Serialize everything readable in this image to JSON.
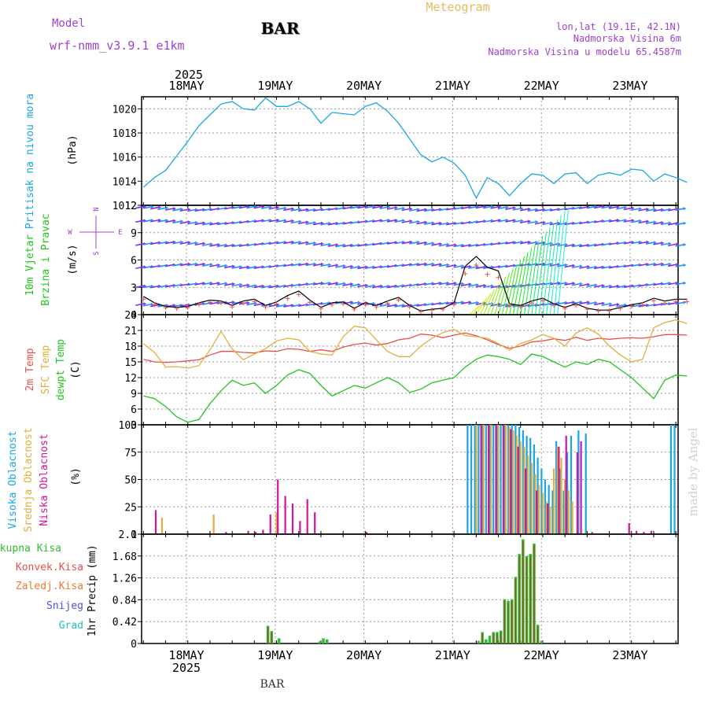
{
  "header": {
    "model_label": "Model",
    "model_name": "wrf-nmm_v3.9.1  e1km",
    "station": "BAR",
    "app_title": "Meteogram",
    "coords": "lon,lat (19.1E, 42.1N)",
    "elevation": "Nadmorska Visina 6m",
    "model_elevation": "Nadmorska Visina u modelu 65.4587m",
    "watermark": "made by Angel",
    "footer_station": "BAR"
  },
  "colors": {
    "pressure": "#1aa6e6",
    "temp2m": "#e8504a",
    "sfc_temp": "#e3ae3a",
    "dewpt": "#22c41e",
    "high_cloud": "#1aa6e6",
    "mid_cloud": "#e3ae3a",
    "low_cloud": "#d0169a",
    "total_precip": "#33bb33",
    "conv_precip": "#e8504a",
    "frozen_precip": "#f07a30",
    "snow": "#5050e0",
    "hail": "#22c0c0",
    "wind_purple": "#8a2be2",
    "wind_blue": "#1e90ff",
    "axis_text": "#000000",
    "meta_text": "#a040d0",
    "title_orange": "#e6b860"
  },
  "chart_data": [
    {
      "id": "pressure",
      "type": "line",
      "ylabel_title": "Pritisak na nivou mora",
      "ylabel_unit": "(hPa)",
      "ylim": [
        1012,
        1021
      ],
      "yticks": [
        1012,
        1014,
        1016,
        1018,
        1020
      ],
      "x_top_labels": [
        "18MAY",
        "19MAY",
        "20MAY",
        "21MAY",
        "22MAY",
        "23MAY"
      ],
      "x_top_year": "2025",
      "grid": true,
      "series": [
        {
          "key": "pressure",
          "x": [
            0,
            3,
            6,
            9,
            12,
            15,
            18,
            21,
            24,
            27,
            30,
            33,
            36,
            39,
            42,
            45,
            48,
            51,
            54,
            57,
            60,
            63,
            66,
            69,
            72,
            75,
            78,
            81,
            84,
            87,
            90,
            93,
            96,
            99,
            102,
            105,
            108,
            111,
            114,
            117,
            120,
            123,
            126,
            129,
            132,
            135,
            138,
            141,
            144,
            147
          ],
          "values": [
            1013.5,
            1014.3,
            1014.9,
            1016.1,
            1017.3,
            1018.6,
            1019.5,
            1020.4,
            1020.6,
            1020.0,
            1019.9,
            1020.9,
            1020.2,
            1020.2,
            1020.6,
            1020.0,
            1018.8,
            1019.7,
            1019.6,
            1019.5,
            1020.2,
            1020.5,
            1019.8,
            1018.8,
            1017.5,
            1016.2,
            1015.6,
            1016.0,
            1015.5,
            1014.5,
            1012.6,
            1014.3,
            1013.8,
            1012.8,
            1013.8,
            1014.6,
            1014.5,
            1013.8,
            1014.6,
            1014.7,
            1013.8,
            1014.5,
            1014.7,
            1014.5,
            1015.0,
            1014.9,
            1014.0,
            1014.6,
            1014.3,
            1013.9
          ]
        }
      ]
    },
    {
      "id": "wind",
      "type": "line",
      "ylabel_title": [
        "10m Vjetar",
        "Brzina i Pravac"
      ],
      "ylabel_unit": "(m/s)",
      "compass": [
        "N",
        "E",
        "S",
        "W"
      ],
      "ylim": [
        0,
        12
      ],
      "yticks": [
        0,
        3,
        6,
        9,
        12
      ],
      "grid": true,
      "series": [
        {
          "key": "wind_speed",
          "x": [
            0,
            3,
            6,
            9,
            12,
            15,
            18,
            21,
            24,
            27,
            30,
            33,
            36,
            39,
            42,
            45,
            48,
            51,
            54,
            57,
            60,
            63,
            66,
            69,
            72,
            75,
            78,
            81,
            84,
            87,
            90,
            93,
            96,
            99,
            102,
            105,
            108,
            111,
            114,
            117,
            120,
            123,
            126,
            129,
            132,
            135,
            138,
            141,
            144,
            147
          ],
          "values": [
            2.0,
            1.3,
            0.9,
            0.8,
            0.9,
            1.3,
            1.6,
            1.5,
            1.0,
            1.5,
            1.7,
            1.0,
            1.4,
            2.1,
            2.6,
            1.6,
            0.8,
            1.3,
            1.4,
            0.7,
            1.3,
            1.0,
            1.5,
            1.9,
            1.0,
            0.4,
            0.6,
            0.7,
            1.3,
            5.3,
            6.4,
            5.2,
            4.8,
            1.2,
            1.0,
            1.5,
            1.8,
            1.2,
            0.8,
            1.2,
            0.7,
            0.5,
            0.5,
            0.8,
            1.1,
            1.3,
            1.8,
            1.5,
            1.7,
            1.7
          ]
        }
      ]
    },
    {
      "id": "temperature",
      "type": "line",
      "ylabel_title": [
        "2m Temp",
        "SFC Temp",
        "dewpt Temp"
      ],
      "ylabel_unit": "(C)",
      "ylim": [
        3,
        24
      ],
      "yticks": [
        3,
        6,
        9,
        12,
        15,
        18,
        21,
        24
      ],
      "grid": true,
      "series": [
        {
          "key": "temp2m",
          "x": [
            0,
            3,
            6,
            9,
            12,
            15,
            18,
            21,
            24,
            27,
            30,
            33,
            36,
            39,
            42,
            45,
            48,
            51,
            54,
            57,
            60,
            63,
            66,
            69,
            72,
            75,
            78,
            81,
            84,
            87,
            90,
            93,
            96,
            99,
            102,
            105,
            108,
            111,
            114,
            117,
            120,
            123,
            126,
            129,
            132,
            135,
            138,
            141,
            144,
            147
          ],
          "values": [
            15.5,
            15.0,
            14.9,
            15.0,
            15.2,
            15.4,
            16.3,
            17.0,
            17.0,
            16.8,
            16.7,
            17.1,
            17.0,
            17.5,
            17.4,
            17.0,
            17.3,
            17.0,
            17.8,
            18.3,
            18.6,
            18.2,
            18.5,
            19.2,
            19.5,
            20.3,
            20.1,
            19.6,
            20.1,
            20.5,
            20.0,
            19.2,
            18.3,
            17.6,
            18.0,
            18.8,
            19.0,
            19.4,
            19.1,
            19.7,
            19.1,
            19.5,
            19.3,
            19.5,
            19.6,
            19.5,
            19.8,
            20.2,
            20.2,
            20.1
          ]
        },
        {
          "key": "sfc_temp",
          "x": [
            0,
            3,
            6,
            9,
            12,
            15,
            18,
            21,
            24,
            27,
            30,
            33,
            36,
            39,
            42,
            45,
            48,
            51,
            54,
            57,
            60,
            63,
            66,
            69,
            72,
            75,
            78,
            81,
            84,
            87,
            90,
            93,
            96,
            99,
            102,
            105,
            108,
            111,
            114,
            117,
            120,
            123,
            126,
            129,
            132,
            135,
            138,
            141,
            144,
            147
          ],
          "values": [
            18.5,
            16.8,
            14.0,
            14.1,
            13.8,
            14.3,
            17.3,
            20.8,
            17.5,
            15.4,
            16.5,
            17.5,
            19.0,
            19.5,
            19.2,
            17.0,
            16.5,
            16.3,
            19.8,
            21.8,
            21.5,
            19.2,
            17.0,
            16.0,
            16.0,
            18.0,
            19.5,
            20.6,
            21.2,
            20.0,
            19.8,
            19.5,
            18.5,
            17.2,
            18.5,
            19.2,
            20.2,
            19.5,
            18.0,
            20.5,
            21.5,
            20.3,
            18.0,
            16.3,
            15.0,
            15.5,
            21.5,
            22.5,
            23.0,
            22.3
          ]
        },
        {
          "key": "dewpt",
          "x": [
            0,
            3,
            6,
            9,
            12,
            15,
            18,
            21,
            24,
            27,
            30,
            33,
            36,
            39,
            42,
            45,
            48,
            51,
            54,
            57,
            60,
            63,
            66,
            69,
            72,
            75,
            78,
            81,
            84,
            87,
            90,
            93,
            96,
            99,
            102,
            105,
            108,
            111,
            114,
            117,
            120,
            123,
            126,
            129,
            132,
            135,
            138,
            141,
            144,
            147
          ],
          "values": [
            8.5,
            8.0,
            6.5,
            4.5,
            3.5,
            4.0,
            7.0,
            9.5,
            11.5,
            10.5,
            11.0,
            9.0,
            10.5,
            12.5,
            13.5,
            12.8,
            10.5,
            8.5,
            9.5,
            10.5,
            10.0,
            11.0,
            12.0,
            11.0,
            9.2,
            9.8,
            11.0,
            11.5,
            12.0,
            14.0,
            15.5,
            16.3,
            16.0,
            15.5,
            14.5,
            16.5,
            16.0,
            15.0,
            14.0,
            15.0,
            14.5,
            15.5,
            15.0,
            13.5,
            12.0,
            10.0,
            8.0,
            11.5,
            12.5,
            12.3
          ]
        }
      ]
    },
    {
      "id": "cloud",
      "type": "bar",
      "ylabel_title": [
        "Visoka Oblacnost",
        "Srednja Oblacnost",
        "Niska Oblacnost"
      ],
      "ylabel_unit": "(%)",
      "ylim": [
        0,
        100
      ],
      "yticks": [
        0,
        25,
        50,
        75,
        100
      ],
      "grid": true,
      "series": [
        {
          "key": "high_cloud",
          "x": [
            88,
            89,
            90,
            91,
            92,
            93,
            94,
            95,
            96,
            97,
            98,
            99,
            100,
            101,
            102,
            103,
            104,
            105,
            106,
            107,
            108,
            109,
            110,
            111,
            112,
            113,
            114,
            115,
            116,
            118,
            120,
            143,
            144
          ],
          "values": [
            100,
            100,
            100,
            100,
            100,
            100,
            100,
            100,
            100,
            100,
            100,
            100,
            100,
            100,
            98,
            95,
            90,
            88,
            82,
            70,
            60,
            50,
            45,
            40,
            85,
            60,
            40,
            75,
            90,
            95,
            92,
            100,
            100
          ]
        },
        {
          "key": "mid_cloud",
          "x": [
            5,
            19,
            36,
            90,
            92,
            94,
            96,
            98,
            99,
            100,
            101,
            102,
            103,
            104,
            105,
            106,
            107,
            108,
            109,
            110,
            111,
            112,
            113,
            114,
            115,
            116
          ],
          "values": [
            15,
            18,
            20,
            100,
            100,
            100,
            100,
            100,
            98,
            95,
            90,
            85,
            80,
            72,
            65,
            55,
            45,
            38,
            30,
            25,
            60,
            80,
            70,
            50,
            40,
            30
          ],
          "note": "mid cloud values estimated"
        },
        {
          "key": "low_cloud",
          "x": [
            3,
            22,
            28,
            30,
            32,
            34,
            36,
            38,
            40,
            42,
            44,
            46,
            60,
            91,
            93,
            95,
            97,
            99,
            101,
            103,
            106,
            109,
            112,
            114,
            117,
            118,
            121,
            131,
            133,
            135,
            137
          ],
          "values": [
            22,
            2,
            3,
            2,
            4,
            18,
            50,
            35,
            28,
            12,
            32,
            20,
            2,
            100,
            100,
            100,
            100,
            96,
            80,
            60,
            40,
            28,
            80,
            90,
            75,
            85,
            2,
            10,
            3,
            2,
            3
          ]
        }
      ]
    },
    {
      "id": "precip",
      "type": "bar",
      "ylabel_title": "1hr Precip",
      "ylabel_unit": "(mm)",
      "ylim": [
        0,
        2.1
      ],
      "yticks": [
        0,
        0.42,
        0.84,
        1.26,
        1.68,
        2.1
      ],
      "x_bottom_labels": [
        "18MAY",
        "19MAY",
        "20MAY",
        "21MAY",
        "22MAY",
        "23MAY"
      ],
      "x_bottom_year": "2025",
      "legend": [
        "Ukupna Kisa",
        "Konvek.Kisa",
        "Zaledj.Kisa",
        "Snijeg",
        "Grad"
      ],
      "grid": true,
      "series": [
        {
          "key": "total_precip",
          "x": [
            34,
            35,
            37,
            48,
            49,
            50,
            91,
            92,
            93,
            94,
            95,
            96,
            97,
            98,
            99,
            100,
            101,
            102,
            103,
            104,
            105,
            106,
            107,
            108,
            109,
            110,
            111
          ],
          "values": [
            0.34,
            0.24,
            0.1,
            0.04,
            0.1,
            0.08,
            0.05,
            0.22,
            0.08,
            0.15,
            0.22,
            0.22,
            0.25,
            0.85,
            0.82,
            0.85,
            1.28,
            1.72,
            2.0,
            1.68,
            1.72,
            1.92,
            0.36,
            0.05,
            0,
            0,
            0
          ]
        }
      ]
    }
  ]
}
